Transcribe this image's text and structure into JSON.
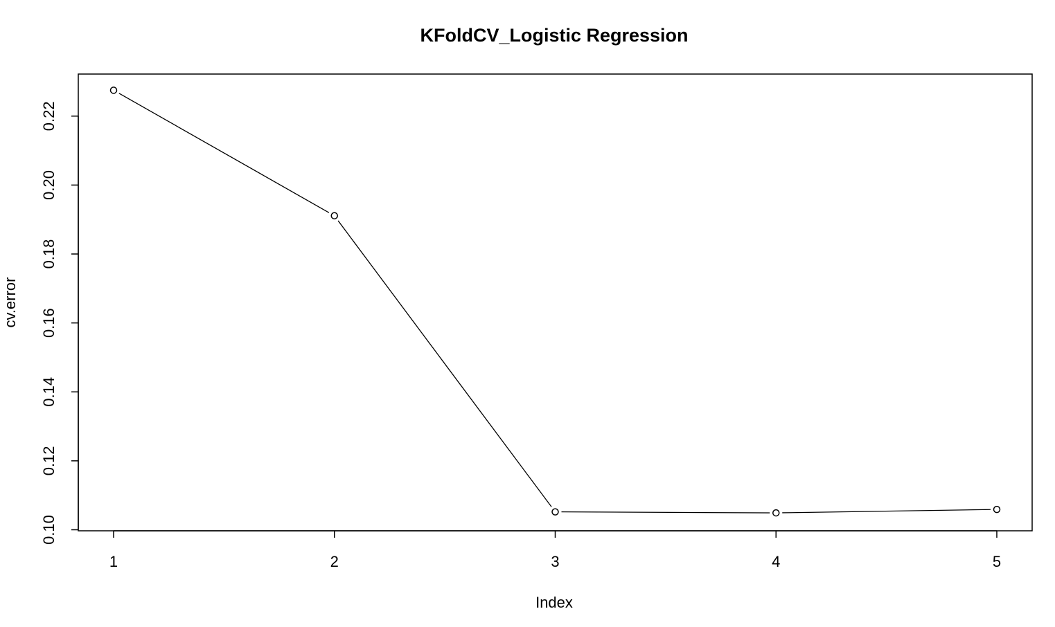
{
  "chart_data": {
    "type": "line",
    "title": "KFoldCV_Logistic Regression",
    "xlabel": "Index",
    "ylabel": "cv.error",
    "x": [
      1,
      2,
      3,
      4,
      5
    ],
    "y": [
      0.2275,
      0.1911,
      0.1052,
      0.1049,
      0.1059
    ],
    "xticks": [
      "1",
      "2",
      "3",
      "4",
      "5"
    ],
    "yticks": [
      "0.10",
      "0.12",
      "0.14",
      "0.16",
      "0.18",
      "0.20",
      "0.22"
    ],
    "xlim": [
      0.84,
      5.16
    ],
    "ylim": [
      0.0997,
      0.2322
    ],
    "grid": false,
    "marker": "open-circle",
    "line_color": "#000000"
  }
}
